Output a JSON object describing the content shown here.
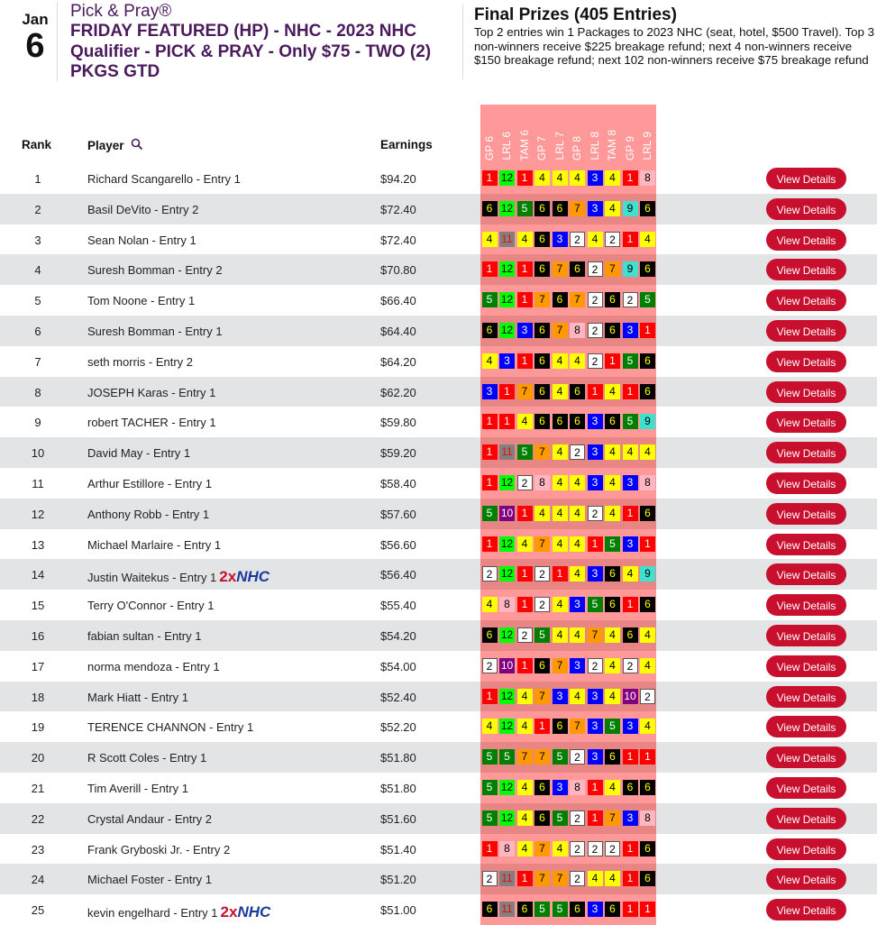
{
  "event": {
    "month": "Jan",
    "day": "6",
    "subtitle": "Pick & Pray®",
    "title": "FRIDAY FEATURED (HP) - NHC - 2023 NHC Qualifier - PICK & PRAY - Only $75 - TWO (2) PKGS GTD"
  },
  "prizes": {
    "heading": "Final Prizes (405 Entries)",
    "text": "Top 2 entries win 1 Packages to 2023 NHC (seat, hotel, $500 Travel). Top 3 non-winners receive $225 breakage refund; next 4 non-winners receive $150 breakage refund; next 102 non-winners receive $75 breakage refund"
  },
  "table": {
    "headers": {
      "rank": "Rank",
      "player": "Player",
      "earnings": "Earnings",
      "search_icon": "magnifier"
    },
    "races": [
      "GP 6",
      "LRL 6",
      "TAM 6",
      "GP 7",
      "LRL 7",
      "GP 8",
      "LRL 8",
      "TAM 8",
      "GP 9",
      "LRL 9"
    ],
    "button_label": "View Details",
    "badge": {
      "two": "2x",
      "nhc": "NHC"
    },
    "rows": [
      {
        "rank": "1",
        "player": "Richard Scangarello - Entry 1",
        "earnings": "$94.20",
        "picks": [
          1,
          12,
          1,
          4,
          4,
          4,
          3,
          4,
          1,
          8
        ]
      },
      {
        "rank": "2",
        "player": "Basil DeVito - Entry 2",
        "earnings": "$72.40",
        "picks": [
          6,
          12,
          5,
          6,
          6,
          7,
          3,
          4,
          9,
          6
        ]
      },
      {
        "rank": "3",
        "player": "Sean Nolan - Entry 1",
        "earnings": "$72.40",
        "picks": [
          4,
          11,
          4,
          6,
          3,
          2,
          4,
          2,
          1,
          4
        ]
      },
      {
        "rank": "4",
        "player": "Suresh Bomman - Entry 2",
        "earnings": "$70.80",
        "picks": [
          1,
          12,
          1,
          6,
          7,
          6,
          2,
          7,
          9,
          6
        ]
      },
      {
        "rank": "5",
        "player": "Tom Noone - Entry 1",
        "earnings": "$66.40",
        "picks": [
          5,
          12,
          1,
          7,
          6,
          7,
          2,
          6,
          2,
          5
        ]
      },
      {
        "rank": "6",
        "player": "Suresh Bomman - Entry 1",
        "earnings": "$64.40",
        "picks": [
          6,
          12,
          3,
          6,
          7,
          8,
          2,
          6,
          3,
          1
        ]
      },
      {
        "rank": "7",
        "player": "seth morris - Entry 2",
        "earnings": "$64.20",
        "picks": [
          4,
          3,
          1,
          6,
          4,
          4,
          2,
          1,
          5,
          6
        ]
      },
      {
        "rank": "8",
        "player": "JOSEPH Karas - Entry 1",
        "earnings": "$62.20",
        "picks": [
          3,
          1,
          7,
          6,
          4,
          6,
          1,
          4,
          1,
          6
        ]
      },
      {
        "rank": "9",
        "player": "robert TACHER - Entry 1",
        "earnings": "$59.80",
        "picks": [
          1,
          1,
          4,
          6,
          6,
          6,
          3,
          6,
          5,
          9
        ]
      },
      {
        "rank": "10",
        "player": "David May - Entry 1",
        "earnings": "$59.20",
        "picks": [
          1,
          11,
          5,
          7,
          4,
          2,
          3,
          4,
          4,
          4
        ]
      },
      {
        "rank": "11",
        "player": "Arthur Estillore - Entry 1",
        "earnings": "$58.40",
        "picks": [
          1,
          12,
          2,
          8,
          4,
          4,
          3,
          4,
          3,
          8
        ]
      },
      {
        "rank": "12",
        "player": "Anthony Robb - Entry 1",
        "earnings": "$57.60",
        "picks": [
          5,
          10,
          1,
          4,
          4,
          4,
          2,
          4,
          1,
          6
        ]
      },
      {
        "rank": "13",
        "player": "Michael Marlaire - Entry 1",
        "earnings": "$56.60",
        "picks": [
          1,
          12,
          4,
          7,
          4,
          4,
          1,
          5,
          3,
          1
        ]
      },
      {
        "rank": "14",
        "player": "Justin Waitekus - Entry 1",
        "earnings": "$56.40",
        "nhc": true,
        "picks": [
          2,
          12,
          1,
          2,
          1,
          4,
          3,
          6,
          4,
          9
        ]
      },
      {
        "rank": "15",
        "player": "Terry O'Connor - Entry 1",
        "earnings": "$55.40",
        "picks": [
          4,
          8,
          1,
          2,
          4,
          3,
          5,
          6,
          1,
          6
        ]
      },
      {
        "rank": "16",
        "player": "fabian sultan - Entry 1",
        "earnings": "$54.20",
        "picks": [
          6,
          12,
          2,
          5,
          4,
          4,
          7,
          4,
          6,
          4
        ]
      },
      {
        "rank": "17",
        "player": "norma mendoza - Entry 1",
        "earnings": "$54.00",
        "picks": [
          2,
          10,
          1,
          6,
          7,
          3,
          2,
          4,
          2,
          4
        ]
      },
      {
        "rank": "18",
        "player": "Mark Hiatt - Entry 1",
        "earnings": "$52.40",
        "picks": [
          1,
          12,
          4,
          7,
          3,
          4,
          3,
          4,
          10,
          2
        ]
      },
      {
        "rank": "19",
        "player": "TERENCE CHANNON - Entry 1",
        "earnings": "$52.20",
        "picks": [
          4,
          12,
          4,
          1,
          6,
          7,
          3,
          5,
          3,
          4
        ]
      },
      {
        "rank": "20",
        "player": "R Scott Coles - Entry 1",
        "earnings": "$51.80",
        "picks": [
          5,
          5,
          7,
          7,
          5,
          2,
          3,
          6,
          1,
          1
        ]
      },
      {
        "rank": "21",
        "player": "Tim Averill - Entry 1",
        "earnings": "$51.80",
        "picks": [
          5,
          12,
          4,
          6,
          3,
          8,
          1,
          4,
          6,
          6
        ]
      },
      {
        "rank": "22",
        "player": "Crystal Andaur - Entry 2",
        "earnings": "$51.60",
        "picks": [
          5,
          12,
          4,
          6,
          5,
          2,
          1,
          7,
          3,
          8
        ]
      },
      {
        "rank": "23",
        "player": "Frank Gryboski Jr. - Entry 2",
        "earnings": "$51.40",
        "picks": [
          1,
          8,
          4,
          7,
          4,
          2,
          2,
          2,
          1,
          6
        ]
      },
      {
        "rank": "24",
        "player": "Michael Foster - Entry 1",
        "earnings": "$51.20",
        "picks": [
          2,
          11,
          1,
          7,
          7,
          2,
          4,
          4,
          1,
          6
        ]
      },
      {
        "rank": "25",
        "player": "kevin engelhard - Entry 1",
        "earnings": "$51.00",
        "nhc": true,
        "picks": [
          6,
          11,
          6,
          5,
          5,
          6,
          3,
          6,
          1,
          1
        ]
      }
    ]
  },
  "colors": {
    "title": "#4b1a5c",
    "button": "#c8102e",
    "grid_bg": "#ff9999",
    "saddle": {
      "1": [
        "#ff0000",
        "#ffffff"
      ],
      "2": [
        "#ffffff",
        "#000000"
      ],
      "3": [
        "#0000ff",
        "#ffffff"
      ],
      "4": [
        "#ffff00",
        "#000000"
      ],
      "5": [
        "#008000",
        "#ffffff"
      ],
      "6": [
        "#000000",
        "#ffff00"
      ],
      "7": [
        "#ff9900",
        "#000000"
      ],
      "8": [
        "#ffb6c1",
        "#000000"
      ],
      "9": [
        "#40e0d0",
        "#000000"
      ],
      "10": [
        "#800080",
        "#ffffff"
      ],
      "11": [
        "#808080",
        "#ff0000"
      ],
      "12": [
        "#00ff00",
        "#000000"
      ]
    }
  }
}
